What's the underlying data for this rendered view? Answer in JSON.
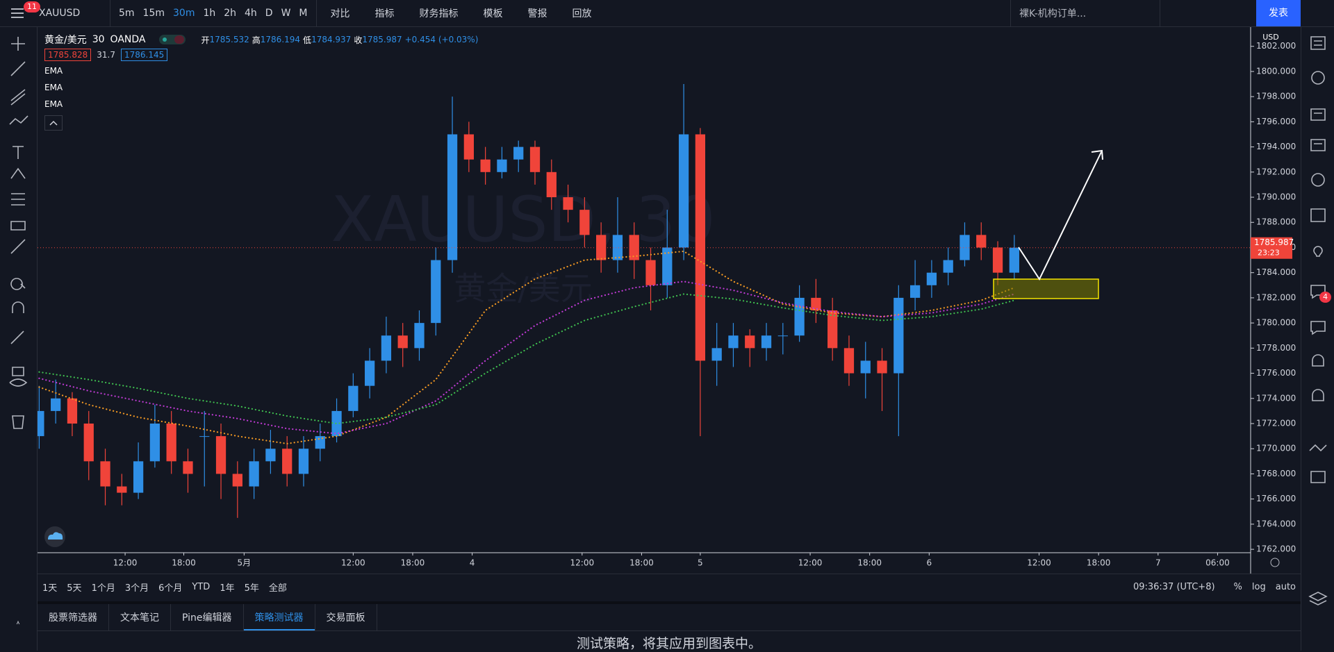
{
  "toolbar": {
    "badge": "11",
    "symbol": "XAUUSD",
    "intervals": [
      "5m",
      "15m",
      "30m",
      "1h",
      "2h",
      "4h",
      "D",
      "W",
      "M"
    ],
    "buttons": [
      "对比",
      "指标",
      "财务指标",
      "模板",
      "警报",
      "回放"
    ],
    "template": "裸K-机构订单...",
    "publish": "发表"
  },
  "legend": {
    "name": "黄金/美元",
    "interval": "30",
    "source": "OANDA",
    "ohlc": [
      {
        "label": "开",
        "value": "1785.532"
      },
      {
        "label": "高",
        "value": "1786.194"
      },
      {
        "label": "低",
        "value": "1784.937"
      },
      {
        "label": "收",
        "value": "1785.987"
      }
    ],
    "change": "+0.454 (+0.03%)",
    "bid": "1785.828",
    "spread": "31.7",
    "ask": "1786.145",
    "indicators": [
      "EMA",
      "EMA",
      "EMA"
    ]
  },
  "chart_data": {
    "type": "candlestick",
    "watermark": [
      "XAUUSD, 30",
      "黄金/美元"
    ],
    "currency": "USD",
    "countdown": "23:23",
    "up_color": "#2f8fe6",
    "down_color": "#f0443a",
    "candles": [
      [
        1771,
        1775,
        1770,
        1773
      ],
      [
        1773,
        1775.5,
        1772,
        1774
      ],
      [
        1774,
        1774.5,
        1771,
        1772
      ],
      [
        1772,
        1773,
        1767.5,
        1769
      ],
      [
        1769,
        1770,
        1765.5,
        1767
      ],
      [
        1767,
        1768,
        1765.5,
        1766.5
      ],
      [
        1766.5,
        1770.5,
        1766,
        1769
      ],
      [
        1769,
        1773.5,
        1768.5,
        1772
      ],
      [
        1772,
        1773,
        1768,
        1769
      ],
      [
        1769,
        1770,
        1766.5,
        1768
      ],
      [
        1771,
        1773,
        1767,
        1771
      ],
      [
        1771,
        1772,
        1766,
        1768
      ],
      [
        1768,
        1769,
        1764.5,
        1767
      ],
      [
        1767,
        1770,
        1766,
        1769
      ],
      [
        1769,
        1771.5,
        1768,
        1770
      ],
      [
        1770,
        1771,
        1767,
        1768
      ],
      [
        1768,
        1771,
        1767,
        1770
      ],
      [
        1770,
        1772,
        1769,
        1771
      ],
      [
        1771,
        1774,
        1770.5,
        1773
      ],
      [
        1773,
        1776,
        1772.5,
        1775
      ],
      [
        1775,
        1778,
        1774,
        1777
      ],
      [
        1777,
        1780.5,
        1776,
        1779
      ],
      [
        1779,
        1780,
        1776.5,
        1778
      ],
      [
        1778,
        1781,
        1777,
        1780
      ],
      [
        1780,
        1786,
        1779,
        1785
      ],
      [
        1785,
        1798,
        1784,
        1795
      ],
      [
        1795,
        1796,
        1792,
        1793
      ],
      [
        1793,
        1794,
        1791,
        1792
      ],
      [
        1792,
        1794,
        1791.5,
        1793
      ],
      [
        1793,
        1794.5,
        1792,
        1794
      ],
      [
        1794,
        1794.5,
        1791,
        1792
      ],
      [
        1792,
        1793,
        1789,
        1790
      ],
      [
        1790,
        1791,
        1788,
        1789
      ],
      [
        1789,
        1790,
        1786,
        1787
      ],
      [
        1787,
        1788,
        1784,
        1785
      ],
      [
        1785,
        1790,
        1784,
        1787
      ],
      [
        1787,
        1788,
        1783.5,
        1785
      ],
      [
        1785,
        1786,
        1781,
        1783
      ],
      [
        1783,
        1789,
        1782,
        1786
      ],
      [
        1786,
        1799,
        1785,
        1795
      ],
      [
        1795,
        1795.5,
        1771,
        1777
      ],
      [
        1777,
        1780,
        1775,
        1778
      ],
      [
        1778,
        1780,
        1776.5,
        1779
      ],
      [
        1779,
        1779.5,
        1776.5,
        1778
      ],
      [
        1778,
        1780,
        1777,
        1779
      ],
      [
        1779,
        1780,
        1777.5,
        1779
      ],
      [
        1779,
        1783,
        1778.5,
        1782
      ],
      [
        1782,
        1783.5,
        1780,
        1781
      ],
      [
        1781,
        1782,
        1777,
        1778
      ],
      [
        1778,
        1779,
        1775,
        1776
      ],
      [
        1776,
        1778.5,
        1774,
        1777
      ],
      [
        1777,
        1778,
        1773,
        1776
      ],
      [
        1776,
        1783,
        1771,
        1782
      ],
      [
        1782,
        1785,
        1781,
        1783
      ],
      [
        1783,
        1785,
        1782,
        1784
      ],
      [
        1784,
        1786,
        1783,
        1785
      ],
      [
        1785,
        1788,
        1784.5,
        1787
      ],
      [
        1787,
        1788,
        1785,
        1786
      ],
      [
        1786,
        1786.5,
        1783,
        1784
      ],
      [
        1784,
        1787,
        1783.5,
        1785.987
      ]
    ],
    "ema_x": [
      0,
      3,
      6,
      9,
      12,
      15,
      18,
      21,
      24,
      27,
      30,
      33,
      36,
      39,
      42,
      45,
      48,
      51,
      54,
      57,
      59
    ],
    "series": [
      {
        "color": "#f59a23",
        "values": [
          1774.9,
          1773.5,
          1772.5,
          1771.8,
          1771.0,
          1770.4,
          1771.0,
          1772.5,
          1775.5,
          1781.0,
          1783.5,
          1785.0,
          1785.3,
          1785.7,
          1783.3,
          1781.5,
          1780.8,
          1780.5,
          1781.0,
          1781.8,
          1782.8
        ]
      },
      {
        "color": "#c13bd6",
        "values": [
          1775.6,
          1774.6,
          1773.8,
          1773.0,
          1772.4,
          1771.6,
          1771.2,
          1772.0,
          1773.8,
          1777.0,
          1779.8,
          1781.8,
          1782.8,
          1783.3,
          1782.6,
          1781.6,
          1780.9,
          1780.5,
          1780.8,
          1781.5,
          1782.3
        ]
      },
      {
        "color": "#3fbf4f",
        "values": [
          1776.1,
          1775.5,
          1774.8,
          1774.0,
          1773.4,
          1772.6,
          1772.0,
          1772.5,
          1773.5,
          1776.0,
          1778.3,
          1780.2,
          1781.3,
          1782.3,
          1781.9,
          1781.2,
          1780.6,
          1780.2,
          1780.5,
          1781.1,
          1781.8
        ]
      }
    ],
    "xlim": [
      -0.1,
      73.3
    ],
    "ylim": [
      1761.73,
      1803.53
    ],
    "grid": false,
    "xticks": [
      {
        "value": 5.2,
        "label": "12:00"
      },
      {
        "value": 8.75,
        "label": "18:00"
      },
      {
        "value": 12.4,
        "label": "5月"
      },
      {
        "value": 19.0,
        "label": "12:00"
      },
      {
        "value": 22.6,
        "label": "18:00"
      },
      {
        "value": 26.2,
        "label": "4"
      },
      {
        "value": 32.85,
        "label": "12:00"
      },
      {
        "value": 36.45,
        "label": "18:00"
      },
      {
        "value": 40.0,
        "label": "5"
      },
      {
        "value": 46.65,
        "label": "12:00"
      },
      {
        "value": 50.25,
        "label": "18:00"
      },
      {
        "value": 53.85,
        "label": "6"
      },
      {
        "value": 60.5,
        "label": "12:00"
      },
      {
        "value": 64.1,
        "label": "18:00"
      },
      {
        "value": 67.7,
        "label": "7"
      },
      {
        "value": 71.3,
        "label": "06:00"
      }
    ],
    "yticks": [
      {
        "value": 1762,
        "label": "1762.000"
      },
      {
        "value": 1764,
        "label": "1764.000"
      },
      {
        "value": 1766,
        "label": "1766.000"
      },
      {
        "value": 1768,
        "label": "1768.000"
      },
      {
        "value": 1770,
        "label": "1770.000"
      },
      {
        "value": 1772,
        "label": "1772.000"
      },
      {
        "value": 1774,
        "label": "1774.000"
      },
      {
        "value": 1776,
        "label": "1776.000"
      },
      {
        "value": 1778,
        "label": "1778.000"
      },
      {
        "value": 1780,
        "label": "1780.000"
      },
      {
        "value": 1782,
        "label": "1782.000"
      },
      {
        "value": 1784,
        "label": "1784.000"
      },
      {
        "value": 1786,
        "label": "1786.000"
      },
      {
        "value": 1788,
        "label": "1788.000"
      },
      {
        "value": 1790,
        "label": "1790.000"
      },
      {
        "value": 1792,
        "label": "1792.000"
      },
      {
        "value": 1794,
        "label": "1794.000"
      },
      {
        "value": 1796,
        "label": "1796.000"
      },
      {
        "value": 1798,
        "label": "1798.000"
      },
      {
        "value": 1800,
        "label": "1800.000"
      },
      {
        "value": 1802,
        "label": "1802.000"
      }
    ]
  },
  "bottom": {
    "ranges": [
      "1天",
      "5天",
      "1个月",
      "3个月",
      "6个月",
      "YTD",
      "1年",
      "5年",
      "全部"
    ],
    "clock": "09:36:37 (UTC+8)",
    "options": [
      "%",
      "log",
      "auto"
    ]
  },
  "tabs": [
    "股票筛选器",
    "文本笔记",
    "Pine编辑器",
    "策略测试器",
    "交易面板"
  ],
  "message": "测试策略，将其应用到图表中。",
  "side_badge": "4"
}
